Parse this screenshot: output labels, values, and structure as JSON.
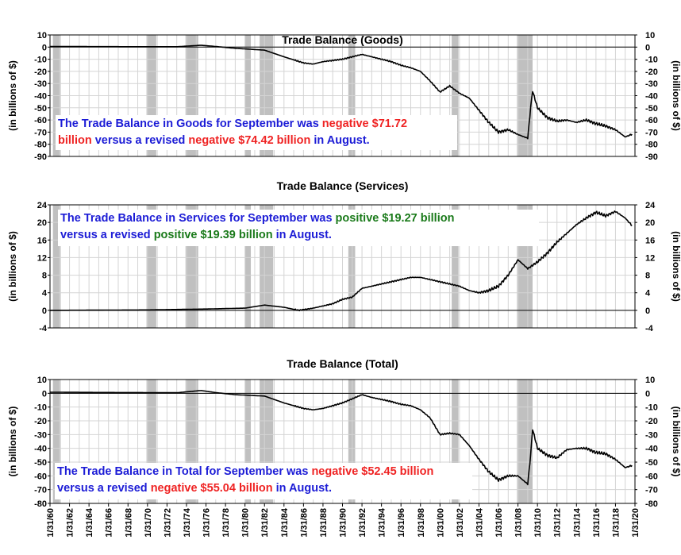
{
  "chart_data": [
    {
      "type": "line",
      "title": "Trade Balance (Goods)",
      "ylabel": "(in billions of $)",
      "ylabel_right": "(in billions of $)",
      "ylim": [
        -90,
        10
      ],
      "yticks": [
        10,
        0,
        -10,
        -20,
        -30,
        -40,
        -50,
        -60,
        -70,
        -80,
        -90
      ],
      "grid": true,
      "line_color": "#000000",
      "series": [
        {
          "x": [
            1960,
            1965,
            1970,
            1973,
            1975.5,
            1977,
            1979,
            1982,
            1984,
            1986,
            1987,
            1988,
            1990,
            1991,
            1992,
            1993,
            1995,
            1996,
            1997,
            1998,
            1999,
            2000,
            2001,
            2002,
            2003,
            2004,
            2005,
            2006,
            2007,
            2008,
            2009.0,
            2009.3,
            2009.5,
            2010,
            2011,
            2012,
            2013,
            2014,
            2015,
            2016,
            2017,
            2018,
            2019,
            2019.7
          ],
          "y": [
            0.5,
            0.4,
            0.3,
            0.3,
            1.5,
            0.5,
            -1,
            -2.5,
            -8,
            -13,
            -14,
            -12,
            -10,
            -8,
            -6,
            -8,
            -12,
            -15,
            -17,
            -20,
            -28,
            -37,
            -32,
            -38,
            -42,
            -52,
            -62,
            -70,
            -68,
            -72,
            -75,
            -50,
            -36,
            -50,
            -58,
            -61,
            -60,
            -62,
            -60,
            -63,
            -65,
            -68,
            -74,
            -71.72
          ]
        }
      ],
      "annotation": {
        "parts": [
          {
            "text": "The Trade Balance in Goods for September was ",
            "color": "#1c1cd6"
          },
          {
            "text": "negative $71.72",
            "color": "#ef2323"
          },
          {
            "text": "billion",
            "color": "#ef2323"
          },
          {
            "text": " versus a revised ",
            "color": "#1c1cd6"
          },
          {
            "text": "negative $74.42 billion",
            "color": "#ef2323"
          },
          {
            "text": " in August.",
            "color": "#1c1cd6"
          }
        ]
      }
    },
    {
      "type": "line",
      "title": "Trade Balance (Services)",
      "ylabel": "(in billions of $)",
      "ylabel_right": "(in billions of $)",
      "ylim": [
        -4,
        24
      ],
      "yticks": [
        24,
        20,
        16,
        12,
        8,
        4,
        0,
        -4
      ],
      "grid": true,
      "line_color": "#000000",
      "series": [
        {
          "x": [
            1960,
            1970,
            1976,
            1980,
            1982,
            1984,
            1985.5,
            1987,
            1989,
            1990,
            1991,
            1992,
            1994,
            1996,
            1997,
            1998,
            2000,
            2002,
            2003,
            2004,
            2005,
            2006,
            2007,
            2008,
            2009,
            2010,
            2011,
            2012,
            2013,
            2014,
            2015,
            2016,
            2017,
            2018,
            2019,
            2019.7
          ],
          "y": [
            0,
            0.1,
            0.3,
            0.5,
            1.2,
            0.7,
            0,
            0.5,
            1.5,
            2.5,
            3,
            5,
            6,
            7,
            7.5,
            7.5,
            6.5,
            5.5,
            4.5,
            4,
            4.5,
            5.5,
            8,
            11.5,
            9.5,
            11,
            13,
            15.5,
            17.5,
            19.5,
            21,
            22.3,
            21.5,
            22.5,
            21,
            19.27
          ]
        }
      ],
      "annotation": {
        "parts": [
          {
            "text": "The Trade Balance in Services for September was ",
            "color": "#1c1cd6"
          },
          {
            "text": "positive $19.27 billion",
            "color": "#1a7a1a"
          },
          {
            "text": "versus a revised ",
            "color": "#1c1cd6"
          },
          {
            "text": "positive $19.39 billion",
            "color": "#1a7a1a"
          },
          {
            "text": " in August.",
            "color": "#1c1cd6"
          }
        ]
      }
    },
    {
      "type": "line",
      "title": "Trade Balance (Total)",
      "ylabel": "(in billions of $)",
      "ylabel_right": "(in billions of $)",
      "ylim": [
        -80,
        10
      ],
      "yticks": [
        10,
        0,
        -10,
        -20,
        -30,
        -40,
        -50,
        -60,
        -70,
        -80
      ],
      "grid": true,
      "line_color": "#000000",
      "series": [
        {
          "x": [
            1960,
            1965,
            1970,
            1973,
            1975.5,
            1977,
            1979,
            1982,
            1984,
            1986,
            1987,
            1988,
            1990,
            1991,
            1992,
            1993,
            1995,
            1996,
            1997,
            1998,
            1999,
            2000,
            2001,
            2002,
            2003,
            2004,
            2005,
            2006,
            2007,
            2008,
            2009.0,
            2009.3,
            2009.5,
            2010,
            2011,
            2012,
            2013,
            2014,
            2015,
            2016,
            2017,
            2018,
            2019,
            2019.7
          ],
          "y": [
            0.8,
            0.6,
            0.5,
            0.4,
            2,
            0.5,
            -1,
            -2,
            -7,
            -11,
            -12,
            -11,
            -7,
            -4,
            -1,
            -3,
            -6,
            -8,
            -9,
            -12,
            -18,
            -30,
            -29,
            -30,
            -38,
            -48,
            -57,
            -63,
            -60,
            -60,
            -66,
            -45,
            -26,
            -40,
            -45,
            -47,
            -41,
            -40,
            -40,
            -43,
            -44,
            -48,
            -54,
            -52.45
          ]
        }
      ],
      "annotation": {
        "parts": [
          {
            "text": "The Trade Balance in Total for September was ",
            "color": "#1c1cd6"
          },
          {
            "text": "negative $52.45 billion",
            "color": "#ef2323"
          },
          {
            "text": "versus a revised ",
            "color": "#1c1cd6"
          },
          {
            "text": "negative $55.04 billion",
            "color": "#ef2323"
          },
          {
            "text": " in August.",
            "color": "#1c1cd6"
          }
        ]
      }
    }
  ],
  "recessions": [
    [
      1960.3,
      1961.1
    ],
    [
      1969.9,
      1970.9
    ],
    [
      1973.9,
      1975.2
    ],
    [
      1980.0,
      1980.6
    ],
    [
      1981.5,
      1982.9
    ],
    [
      1990.6,
      1991.3
    ],
    [
      2001.2,
      2001.9
    ],
    [
      2007.9,
      2009.5
    ]
  ],
  "recession_color": "#c0c0c0",
  "x_ticks": [
    "1/31/60",
    "1/31/62",
    "1/31/64",
    "1/31/66",
    "1/31/68",
    "1/31/70",
    "1/31/72",
    "1/31/74",
    "1/31/76",
    "1/31/78",
    "1/31/80",
    "1/31/82",
    "1/31/84",
    "1/31/86",
    "1/31/88",
    "1/31/90",
    "1/31/92",
    "1/31/94",
    "1/31/96",
    "1/31/98",
    "1/31/00",
    "1/31/02",
    "1/31/04",
    "1/31/06",
    "1/31/08",
    "1/31/10",
    "1/31/12",
    "1/31/14",
    "1/31/16",
    "1/31/18",
    "1/31/20"
  ],
  "x_range": [
    "1/31/60",
    "1/31/20"
  ]
}
